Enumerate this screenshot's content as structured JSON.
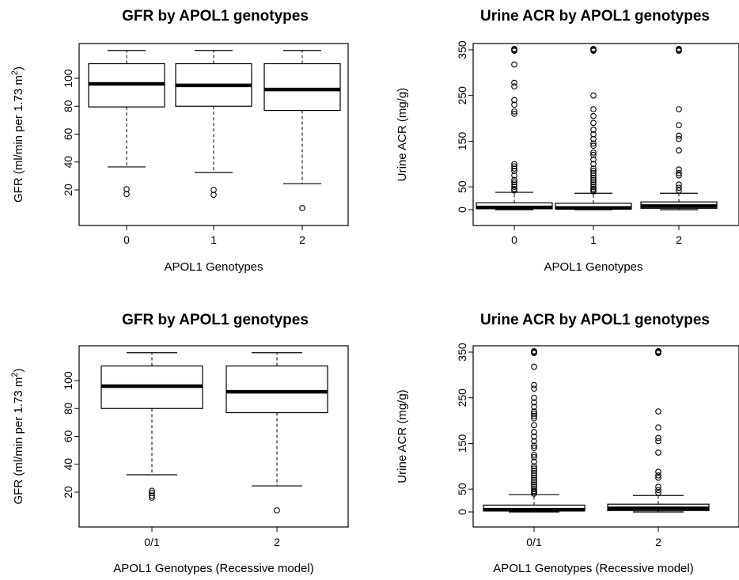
{
  "chart_data": [
    {
      "type": "boxplot",
      "title": "GFR by APOL1 genotypes",
      "xlabel": "APOL1 Genotypes",
      "ylabel": "GFR (ml/min per 1.73 m",
      "ylabel_sup": "2",
      "ylabel_close": ")",
      "ylim": [
        5,
        122
      ],
      "yticks": [
        "20",
        "40",
        "60",
        "80",
        "100"
      ],
      "categories": [
        "0",
        "1",
        "2"
      ],
      "boxes": [
        {
          "whisker_low": 36.5,
          "q1": 79.5,
          "median": 96,
          "q3": 110.5,
          "whisker_high": 120,
          "outliers": [
            20.5,
            17
          ]
        },
        {
          "whisker_low": 32.5,
          "q1": 80,
          "median": 95,
          "q3": 110.5,
          "whisker_high": 120,
          "outliers": [
            20,
            16.5
          ]
        },
        {
          "whisker_low": 24.5,
          "q1": 77,
          "median": 92,
          "q3": 110.5,
          "whisker_high": 120,
          "outliers": [
            7
          ]
        }
      ]
    },
    {
      "type": "boxplot",
      "title": "Urine ACR by APOL1 genotypes",
      "xlabel": "APOL1 Genotypes",
      "ylabel": "Urine ACR (mg/g)",
      "ylim": [
        -10,
        360
      ],
      "yticks": [
        "0",
        "50",
        "150",
        "250",
        "350"
      ],
      "categories": [
        "0",
        "1",
        "2"
      ],
      "boxes": [
        {
          "whisker_low": 0,
          "q1": 2,
          "median": 5,
          "q3": 15,
          "whisker_high": 38,
          "outliers": [
            42,
            45,
            50,
            55,
            60,
            65,
            75,
            85,
            90,
            95,
            100,
            210,
            215,
            230,
            240,
            270,
            278,
            318,
            348,
            350,
            352
          ]
        },
        {
          "whisker_low": 0,
          "q1": 2,
          "median": 4,
          "q3": 14,
          "whisker_high": 36,
          "outliers": [
            40,
            43,
            46,
            50,
            55,
            60,
            65,
            70,
            75,
            80,
            85,
            90,
            100,
            110,
            120,
            125,
            140,
            145,
            155,
            165,
            175,
            190,
            205,
            220,
            250,
            348,
            350,
            352
          ]
        },
        {
          "whisker_low": 0,
          "q1": 3,
          "median": 8,
          "q3": 17,
          "whisker_high": 36,
          "outliers": [
            42,
            48,
            55,
            75,
            80,
            88,
            130,
            155,
            162,
            185,
            220,
            348,
            350,
            352
          ]
        }
      ]
    },
    {
      "type": "boxplot",
      "title": "GFR by APOL1 genotypes",
      "xlabel": "APOL1 Genotypes (Recessive model)",
      "ylabel": "GFR (ml/min per 1.73 m",
      "ylabel_sup": "2",
      "ylabel_close": ")",
      "ylim": [
        5,
        122
      ],
      "yticks": [
        "20",
        "40",
        "60",
        "80",
        "100"
      ],
      "categories": [
        "0/1",
        "2"
      ],
      "boxes": [
        {
          "whisker_low": 32.5,
          "q1": 80,
          "median": 96,
          "q3": 110.5,
          "whisker_high": 120,
          "outliers": [
            21,
            19.5,
            17.5,
            16
          ]
        },
        {
          "whisker_low": 24.5,
          "q1": 77,
          "median": 92,
          "q3": 110.5,
          "whisker_high": 120,
          "outliers": [
            7
          ]
        }
      ]
    },
    {
      "type": "boxplot",
      "title": "Urine ACR by APOL1 genotypes",
      "xlabel": "APOL1 Genotypes (Recessive model)",
      "ylabel": "Urine ACR (mg/g)",
      "ylim": [
        -10,
        360
      ],
      "yticks": [
        "0",
        "50",
        "150",
        "250",
        "350"
      ],
      "categories": [
        "0/1",
        "2"
      ],
      "boxes": [
        {
          "whisker_low": 0,
          "q1": 2,
          "median": 5,
          "q3": 15,
          "whisker_high": 38,
          "outliers": [
            40,
            43,
            46,
            50,
            55,
            60,
            65,
            70,
            75,
            80,
            85,
            90,
            95,
            100,
            110,
            120,
            125,
            140,
            145,
            155,
            165,
            175,
            190,
            205,
            210,
            215,
            220,
            230,
            240,
            250,
            270,
            278,
            318,
            348,
            350,
            352
          ]
        },
        {
          "whisker_low": 0,
          "q1": 3,
          "median": 8,
          "q3": 17,
          "whisker_high": 36,
          "outliers": [
            42,
            48,
            55,
            75,
            80,
            88,
            130,
            155,
            162,
            185,
            220,
            348,
            350,
            352
          ]
        }
      ]
    }
  ]
}
